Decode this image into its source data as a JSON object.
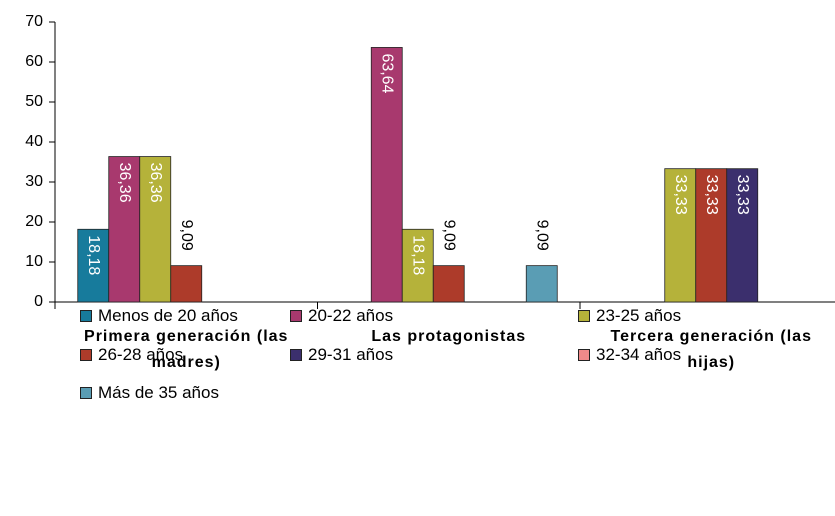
{
  "chart_data": {
    "type": "bar",
    "categories": [
      "Primera generación (las madres)",
      "Las protagonistas",
      "Tercera generación (las hijas)"
    ],
    "series": [
      {
        "name": "Menos de 20 años",
        "color": "#177b9c",
        "values": [
          18.18,
          null,
          null
        ],
        "value_labels": [
          "18,18",
          null,
          null
        ]
      },
      {
        "name": "20-22 años",
        "color": "#a8396e",
        "values": [
          36.36,
          63.64,
          null
        ],
        "value_labels": [
          "36,36",
          "63,64",
          null
        ]
      },
      {
        "name": "23-25 años",
        "color": "#b5b23a",
        "values": [
          36.36,
          18.18,
          33.33
        ],
        "value_labels": [
          "36,36",
          "18,18",
          "33,33"
        ]
      },
      {
        "name": "26-28 años",
        "color": "#ad3b2a",
        "values": [
          9.09,
          9.09,
          33.33
        ],
        "value_labels": [
          "9,09",
          "9,09",
          "33,33"
        ]
      },
      {
        "name": "29-31 años",
        "color": "#3b2f6d",
        "values": [
          null,
          null,
          33.33
        ],
        "value_labels": [
          null,
          null,
          "33,33"
        ]
      },
      {
        "name": "32-34 años",
        "color": "#f08a8a",
        "values": [
          null,
          null,
          null
        ],
        "value_labels": [
          null,
          null,
          null
        ]
      },
      {
        "name": "Más de 35 años",
        "color": "#5a9db4",
        "values": [
          null,
          9.09,
          null
        ],
        "value_labels": [
          null,
          "9,09",
          null
        ]
      }
    ],
    "ylim": [
      0,
      70
    ],
    "yticks": [
      0,
      10,
      20,
      30,
      40,
      50,
      60,
      70
    ],
    "legend": "bottom"
  }
}
